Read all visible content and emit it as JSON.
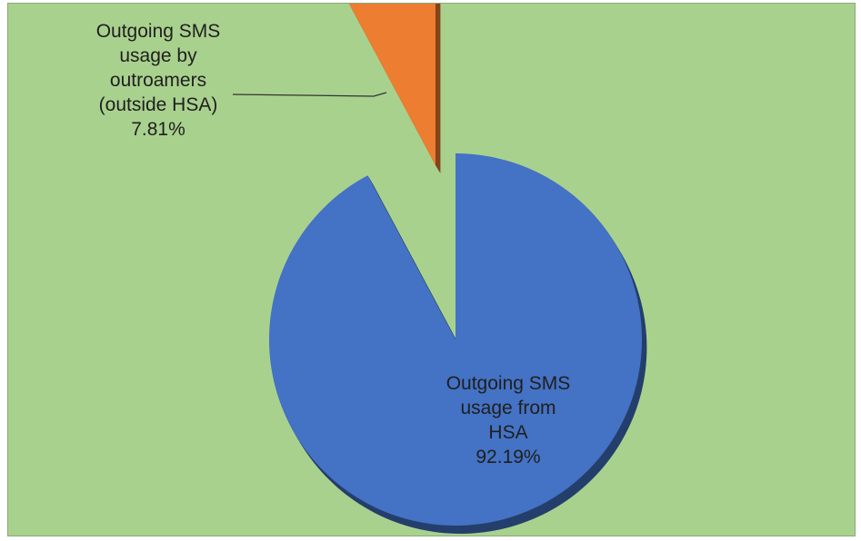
{
  "chart_data": {
    "type": "pie",
    "style": "3d-exploded",
    "slices": [
      {
        "label_lines": [
          "Outgoing SMS",
          "usage from",
          "HSA"
        ],
        "percent_label": "92.19%",
        "value": 92.19,
        "color": "#4472c4"
      },
      {
        "label_lines": [
          "Outgoing SMS",
          "usage by",
          "outroamers",
          "(outside HSA)"
        ],
        "percent_label": "7.81%",
        "value": 7.81,
        "color": "#ed7d31"
      }
    ],
    "background_color": "#a9d18e",
    "legend": "none"
  }
}
